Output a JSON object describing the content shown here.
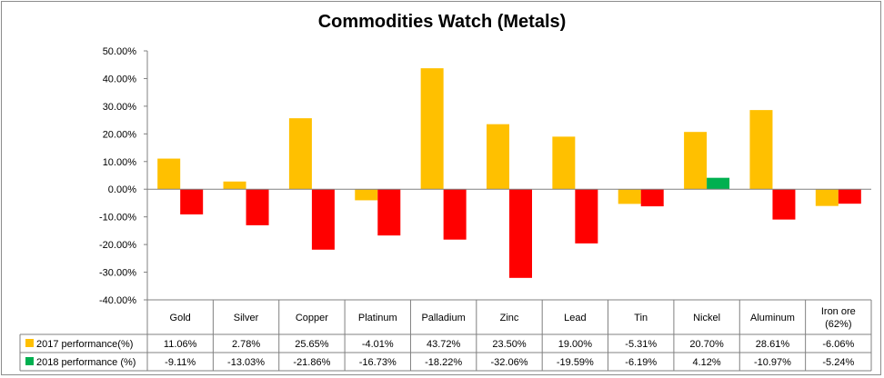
{
  "chart_data": {
    "type": "bar",
    "title": "Commodities Watch (Metals)",
    "xlabel": "",
    "ylabel": "",
    "ylim": [
      -40,
      50
    ],
    "y_ticks": [
      "50.00%",
      "40.00%",
      "30.00%",
      "20.00%",
      "10.00%",
      "0.00%",
      "-10.00%",
      "-20.00%",
      "-30.00%",
      "-40.00%"
    ],
    "y_tick_values": [
      50,
      40,
      30,
      20,
      10,
      0,
      -10,
      -20,
      -30,
      -40
    ],
    "grid": false,
    "legend": "data-table-below",
    "categories": [
      [
        "Gold"
      ],
      [
        "Silver"
      ],
      [
        "Copper"
      ],
      [
        "Platinum"
      ],
      [
        "Palladium"
      ],
      [
        "Zinc"
      ],
      [
        "Lead"
      ],
      [
        "Tin"
      ],
      [
        "Nickel"
      ],
      [
        "Aluminum"
      ],
      [
        "Iron ore",
        "(62%)"
      ]
    ],
    "series": [
      {
        "name": "2017 performance(%)",
        "color": "#ffc000",
        "values": [
          11.06,
          2.78,
          25.65,
          -4.01,
          43.72,
          23.5,
          19.0,
          -5.31,
          20.7,
          28.61,
          -6.06
        ],
        "labels": [
          "11.06%",
          "2.78%",
          "25.65%",
          "-4.01%",
          "43.72%",
          "23.50%",
          "19.00%",
          "-5.31%",
          "20.70%",
          "28.61%",
          "-6.06%"
        ]
      },
      {
        "name": "2018 performance (%)",
        "color_positive": "#00b050",
        "color_negative": "#ff0000",
        "values": [
          -9.11,
          -13.03,
          -21.86,
          -16.73,
          -18.22,
          -32.06,
          -19.59,
          -6.19,
          4.12,
          -10.97,
          -5.24
        ],
        "labels": [
          "-9.11%",
          "-13.03%",
          "-21.86%",
          "-16.73%",
          "-18.22%",
          "-32.06%",
          "-19.59%",
          "-6.19%",
          "4.12%",
          "-10.97%",
          "-5.24%"
        ]
      }
    ]
  }
}
